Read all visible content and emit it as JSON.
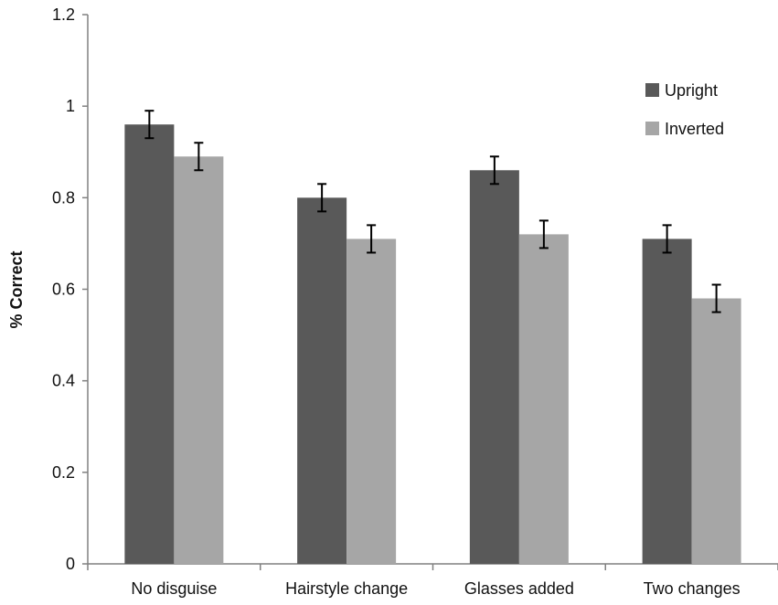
{
  "chart_data": {
    "type": "bar",
    "title": "",
    "xlabel": "",
    "ylabel": "% Correct",
    "ylim": [
      0,
      1.2
    ],
    "yticks": [
      "0",
      "0.2",
      "0.4",
      "0.6",
      "0.8",
      "1",
      "1.2"
    ],
    "categories": [
      "No disguise",
      "Hairstyle change",
      "Glasses added",
      "Two changes"
    ],
    "series": [
      {
        "name": "Upright",
        "color": "#595959",
        "values": [
          0.96,
          0.8,
          0.86,
          0.71
        ],
        "errors": [
          0.03,
          0.03,
          0.03,
          0.03
        ]
      },
      {
        "name": "Inverted",
        "color": "#a6a6a6",
        "values": [
          0.89,
          0.71,
          0.72,
          0.58
        ],
        "errors": [
          0.03,
          0.03,
          0.03,
          0.03
        ]
      }
    ],
    "grid": false,
    "legend_position": "top-right",
    "error_bars": true
  }
}
